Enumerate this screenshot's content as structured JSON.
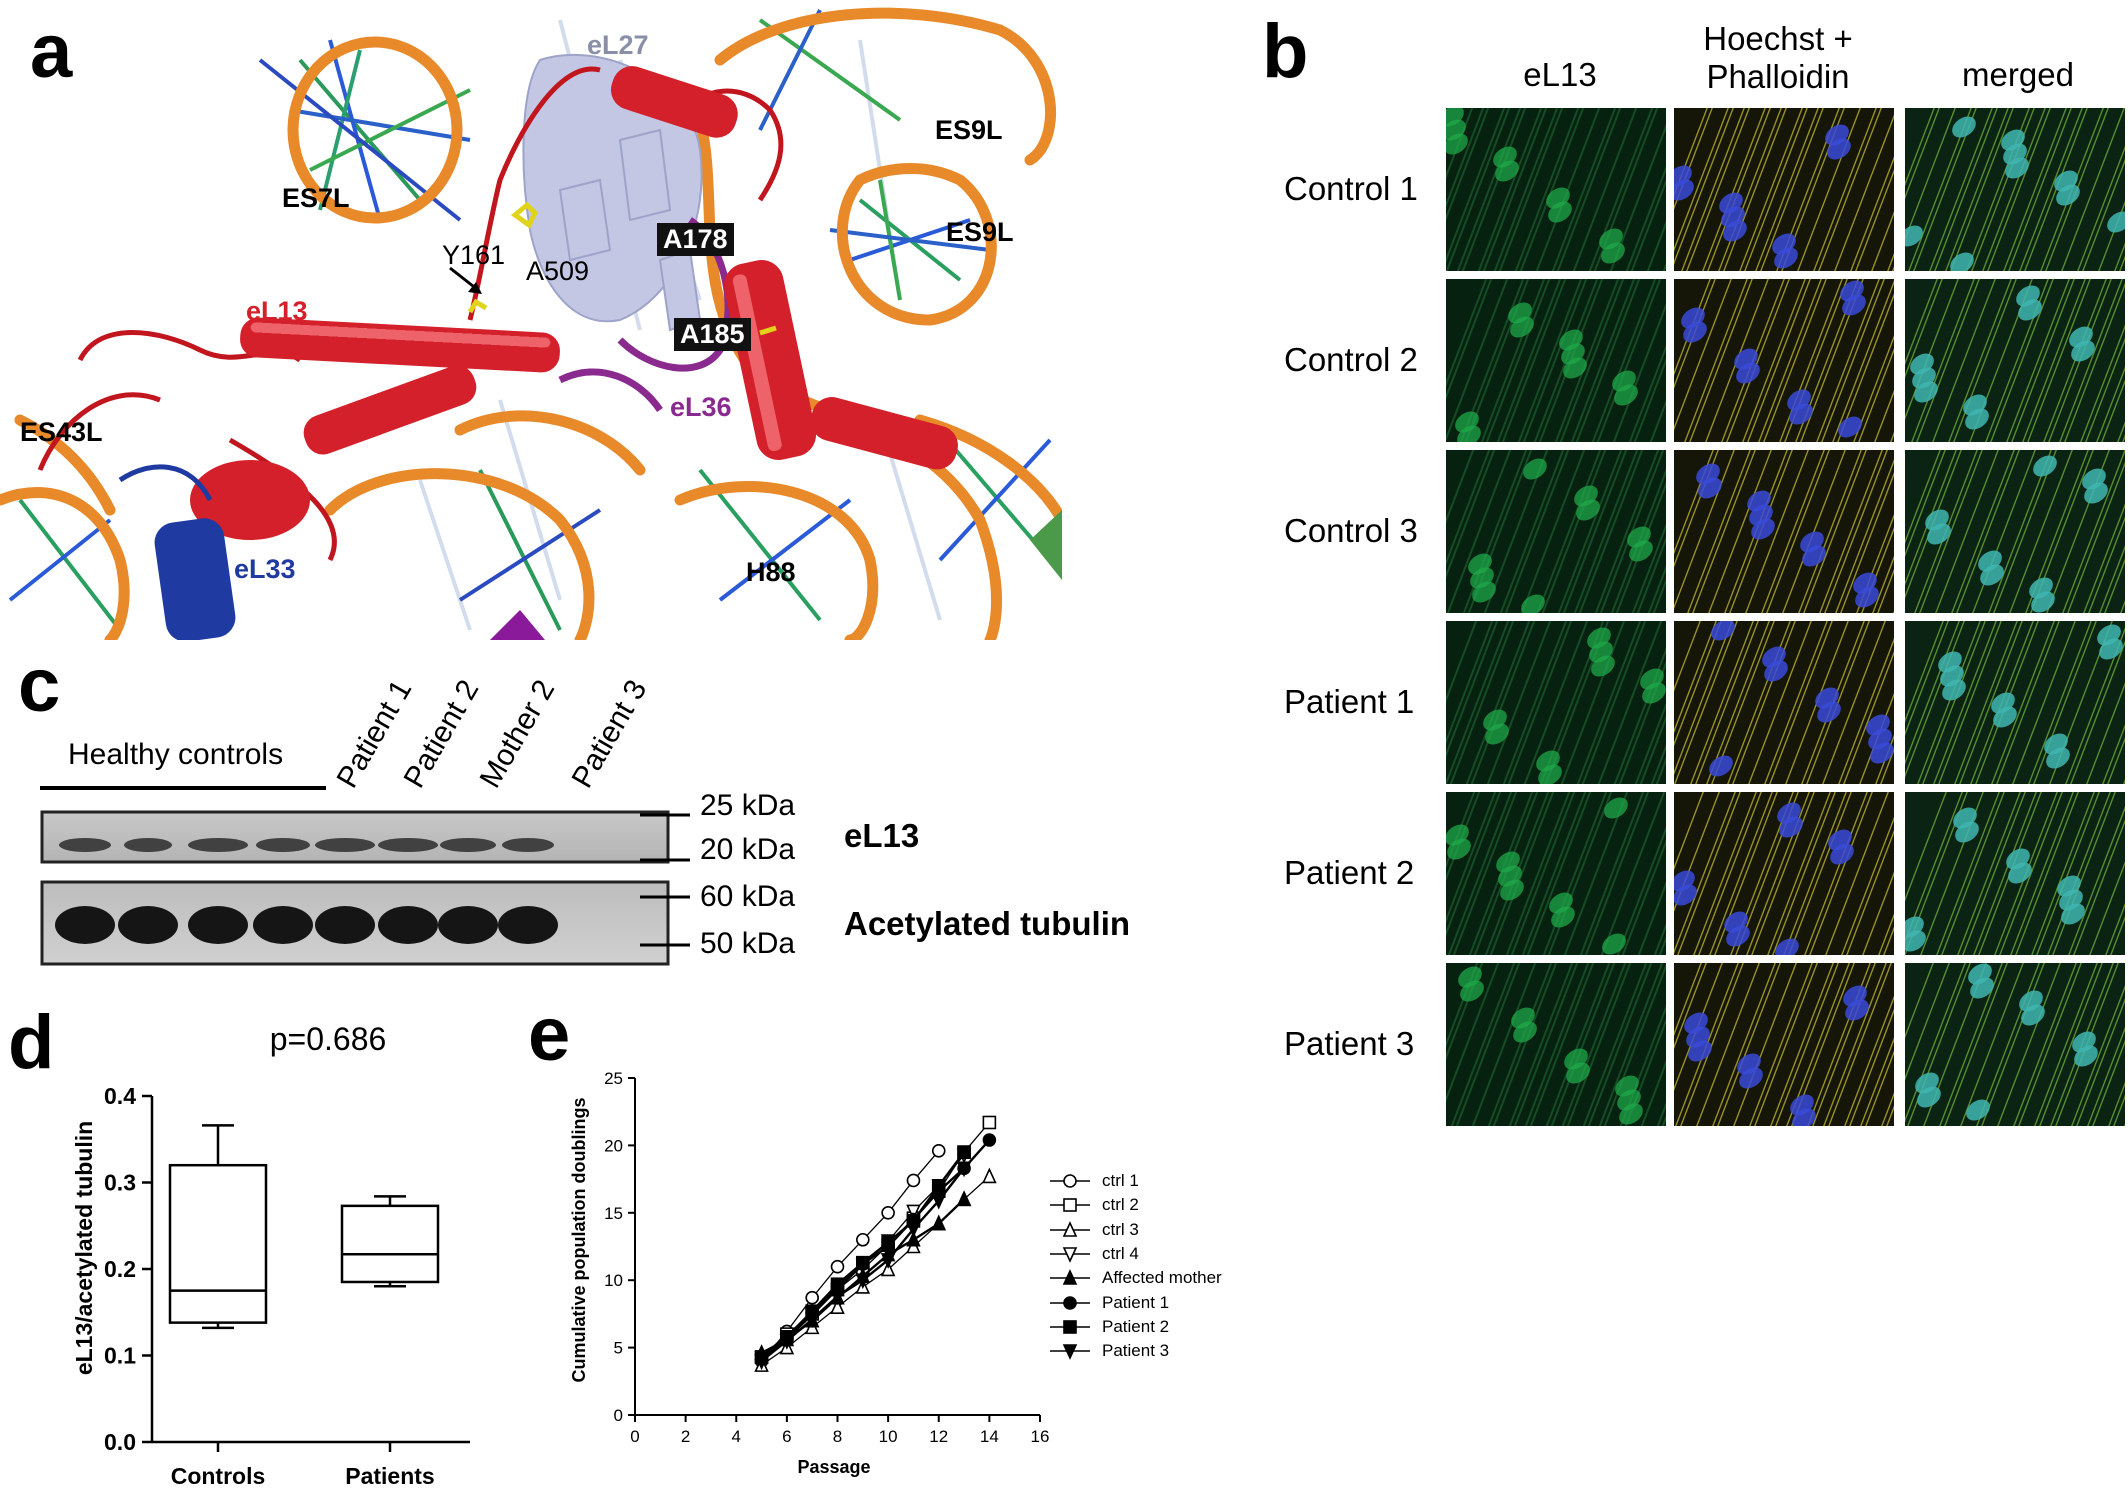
{
  "panel_letters": {
    "a": "a",
    "b": "b",
    "c": "c",
    "d": "d",
    "e": "e"
  },
  "panel_a": {
    "labels": {
      "eL27": "eL27",
      "ES7L": "ES7L",
      "ES9L_top": "ES9L",
      "ES9L_mid": "ES9L",
      "Y161": "Y161",
      "A509": "A509",
      "A178": "A178",
      "A185": "A185",
      "eL13": "eL13",
      "eL36": "eL36",
      "ES43L": "ES43L",
      "eL33": "eL33",
      "H88": "H88"
    },
    "colors": {
      "eL13": "#d4202a",
      "eL36": "#8a2a8e",
      "eL33": "#1f3aa0",
      "eL27": "#8a8fa8",
      "rna": "#e8892a"
    }
  },
  "panel_b": {
    "columns": [
      "eL13",
      "Hoechst +\nPhalloidin",
      "merged"
    ],
    "rows": [
      "Control 1",
      "Control 2",
      "Control 3",
      "Patient 1",
      "Patient 2",
      "Patient 3"
    ],
    "colors": {
      "green": "#1fa84a",
      "yellow": "#b8b030",
      "blue": "#3a4ad8"
    }
  },
  "panel_c": {
    "group_label": "Healthy controls",
    "lanes": [
      "Patient 1",
      "Patient 2",
      "Mother 2",
      "Patient 3"
    ],
    "markers": [
      "25 kDa",
      "20 kDa",
      "60 kDa",
      "50 kDa"
    ],
    "bands": [
      "eL13",
      "Acetylated tubulin"
    ]
  },
  "chart_data": [
    {
      "type": "box",
      "annotation": "p=0.686",
      "ylabel": "eL13/acetylated tubulin",
      "categories": [
        "Controls",
        "Patients"
      ],
      "ylim": [
        0.0,
        0.4
      ],
      "yticks": [
        "0.0",
        "0.1",
        "0.2",
        "0.3",
        "0.4"
      ],
      "boxes": [
        {
          "name": "Controls",
          "min": 0.132,
          "q1": 0.138,
          "median": 0.175,
          "q3": 0.32,
          "max": 0.366
        },
        {
          "name": "Patients",
          "min": 0.18,
          "q1": 0.185,
          "median": 0.217,
          "q3": 0.273,
          "max": 0.284
        }
      ]
    },
    {
      "type": "line",
      "xlabel": "Passage",
      "ylabel": "Cumulative population doublings",
      "xlim": [
        0,
        16
      ],
      "ylim": [
        0,
        25
      ],
      "xticks": [
        "0",
        "2",
        "4",
        "6",
        "8",
        "10",
        "12",
        "14",
        "16"
      ],
      "yticks": [
        "0",
        "5",
        "10",
        "15",
        "20",
        "25"
      ],
      "series": [
        {
          "name": "ctrl 1",
          "marker": "circle-open",
          "x": [
            5,
            6,
            7,
            8,
            9,
            10,
            11,
            12
          ],
          "y": [
            4.0,
            6.2,
            8.7,
            11.0,
            13.0,
            15.0,
            17.4,
            19.6
          ]
        },
        {
          "name": "ctrl 2",
          "marker": "square-open",
          "x": [
            5,
            6,
            7,
            8,
            9,
            10,
            11,
            12,
            13,
            14
          ],
          "y": [
            4.3,
            6.0,
            7.5,
            9.3,
            10.8,
            12.6,
            14.6,
            16.6,
            19.5,
            21.7
          ]
        },
        {
          "name": "ctrl 3",
          "marker": "triangle-open",
          "x": [
            5,
            6,
            7,
            8,
            9,
            10,
            11,
            12,
            13,
            14
          ],
          "y": [
            3.7,
            5.0,
            6.5,
            8.0,
            9.5,
            10.8,
            12.5,
            14.2,
            16.0,
            17.7
          ]
        },
        {
          "name": "ctrl 4",
          "marker": "triangle-down-open",
          "x": [
            5,
            6,
            7,
            8,
            9,
            10,
            11,
            12,
            13
          ],
          "y": [
            4.0,
            5.6,
            7.4,
            9.3,
            11.1,
            12.9,
            15.1,
            17.0,
            19.3
          ]
        },
        {
          "name": "Affected mother",
          "marker": "triangle-filled",
          "x": [
            5,
            6,
            7,
            8,
            9,
            10,
            11,
            12,
            13
          ],
          "y": [
            4.6,
            5.6,
            7.0,
            8.7,
            10.3,
            11.9,
            13.0,
            14.2,
            16.0
          ]
        },
        {
          "name": "Patient 1",
          "marker": "circle-filled",
          "x": [
            5,
            6,
            7,
            8,
            9,
            10,
            11,
            12,
            13,
            14
          ],
          "y": [
            4.2,
            5.7,
            7.5,
            9.5,
            11.2,
            12.5,
            14.5,
            16.6,
            18.3,
            20.4
          ]
        },
        {
          "name": "Patient 2",
          "marker": "square-filled",
          "x": [
            5,
            6,
            7,
            8,
            9,
            10,
            11,
            12,
            13
          ],
          "y": [
            4.3,
            5.8,
            7.7,
            9.7,
            11.3,
            12.8,
            14.4,
            17.0,
            19.5
          ]
        },
        {
          "name": "Patient 3",
          "marker": "triangle-down-filled",
          "x": [
            5,
            6,
            7,
            8,
            9,
            10,
            11,
            12,
            13
          ],
          "y": [
            4.0,
            5.5,
            7.1,
            8.8,
            10.0,
            11.5,
            13.8,
            15.9,
            18.3
          ]
        }
      ]
    }
  ]
}
